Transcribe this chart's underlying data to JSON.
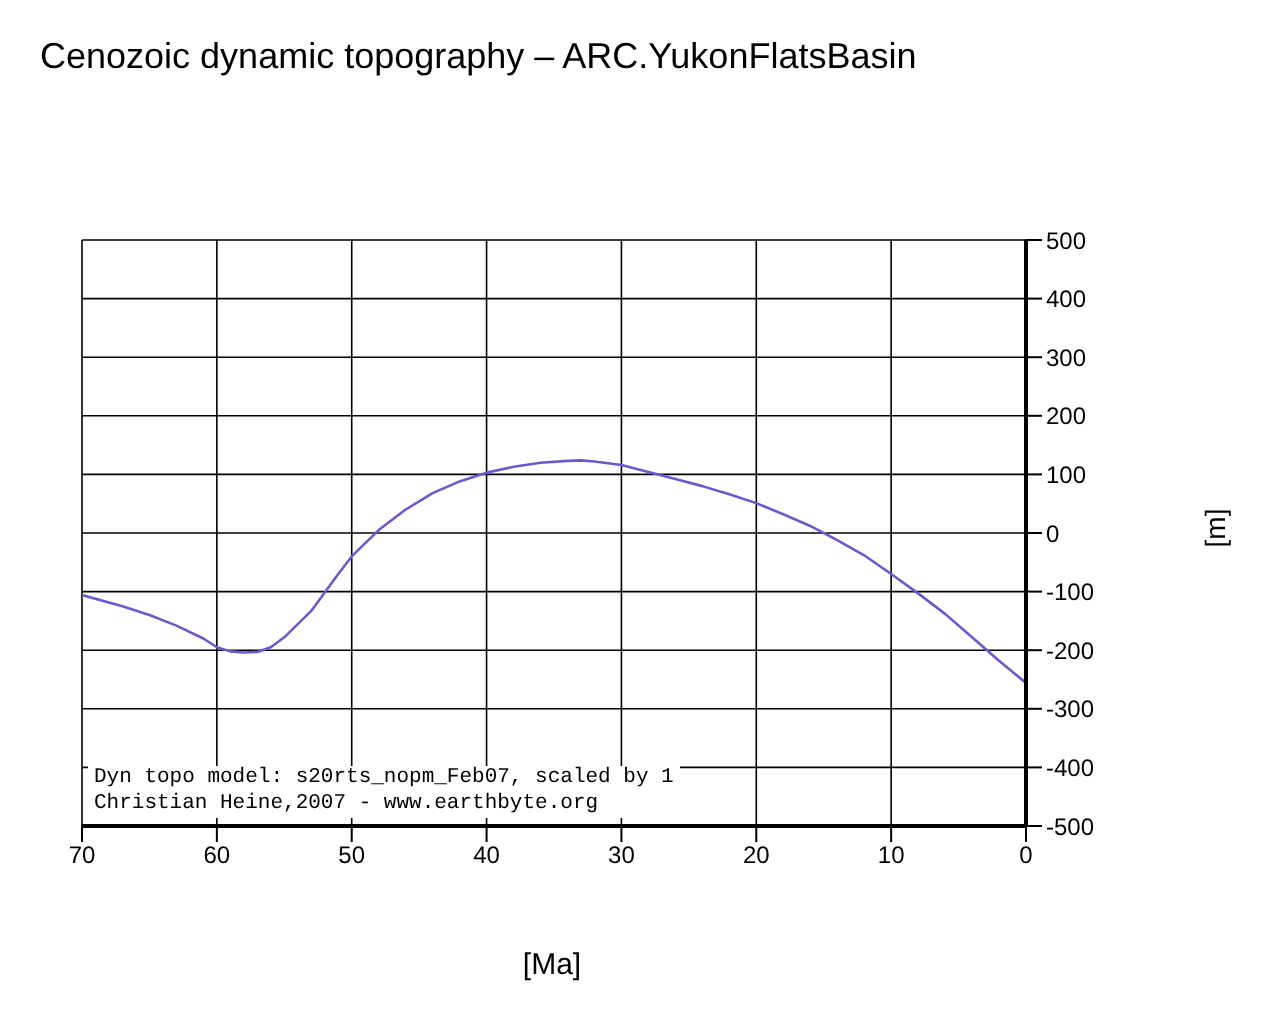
{
  "chart_data": {
    "type": "line",
    "title": "Cenozoic dynamic topography – ARC.YukonFlatsBasin",
    "xlabel": "[Ma]",
    "ylabel": "[m]",
    "x": [
      70,
      67,
      65,
      63,
      61,
      60,
      59,
      58,
      57,
      56,
      55,
      53,
      51,
      50,
      48,
      46,
      44,
      42,
      40,
      38,
      36,
      34,
      33,
      32,
      30,
      28,
      26,
      24,
      22,
      20,
      18,
      16,
      14,
      12,
      10,
      8,
      6,
      4,
      2,
      0
    ],
    "series": [
      {
        "color": "#6a5acd",
        "values": [
          -106,
          -125,
          -140,
          -158,
          -180,
          -195,
          -202,
          -204,
          -203,
          -195,
          -178,
          -133,
          -70,
          -40,
          5,
          40,
          68,
          88,
          103,
          113,
          120,
          123,
          124,
          122,
          116,
          104,
          92,
          80,
          66,
          51,
          32,
          12,
          -12,
          -38,
          -70,
          -103,
          -138,
          -178,
          -218,
          -256
        ]
      }
    ],
    "xlim": [
      70,
      0
    ],
    "xticks": [
      70,
      60,
      50,
      40,
      30,
      20,
      10,
      0
    ],
    "ylim": [
      -500,
      500
    ],
    "yticks": [
      -500,
      -400,
      -300,
      -200,
      -100,
      0,
      100,
      200,
      300,
      400,
      500
    ],
    "grid": true,
    "marker": "none",
    "line_style": "solid",
    "annotations": [
      "Dyn topo model: s20rts_nopm_Feb07, scaled by 1",
      "Christian Heine,2007 - www.earthbyte.org"
    ]
  }
}
